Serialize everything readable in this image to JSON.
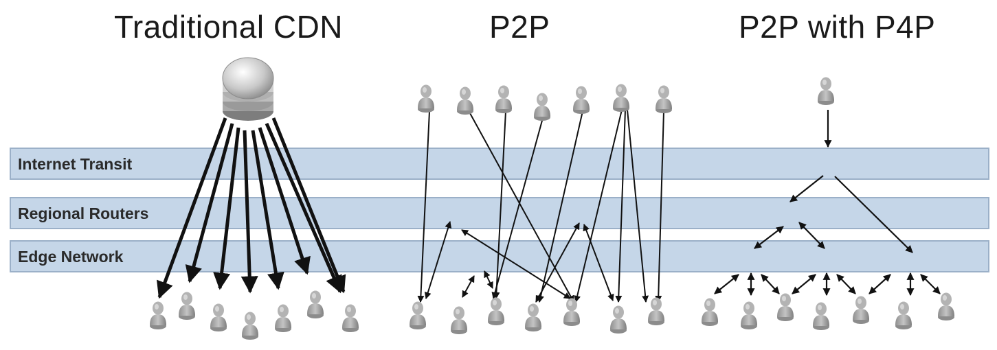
{
  "titles": {
    "cdn": "Traditional CDN",
    "p2p": "P2P",
    "p4p": "P2P with P4P"
  },
  "layers": {
    "transit": "Internet Transit",
    "regional": "Regional Routers",
    "edge": "Edge Network"
  },
  "colors": {
    "band_fill": "#c5d6e8",
    "band_stroke": "#9bb0c8",
    "arrow": "#111111",
    "person": "#a6a6a6"
  }
}
